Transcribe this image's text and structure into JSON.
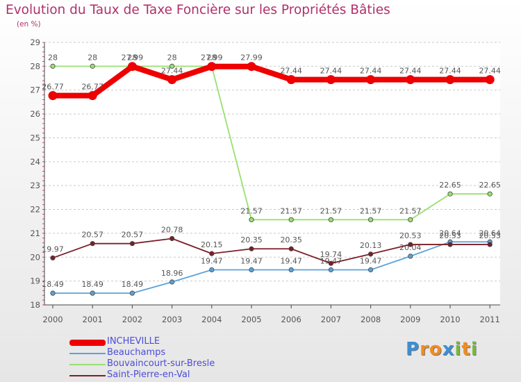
{
  "title": "Evolution du Taux de Taxe Foncière sur les Propriétés Bâties",
  "unit_label": "(en %)",
  "brand": {
    "letters": [
      "P",
      "r",
      "o",
      "x",
      "i",
      "t",
      "i"
    ],
    "colors": [
      "#3b8fd6",
      "#f28c1e",
      "#f28c1e",
      "#3b8fd6",
      "#7ab648",
      "#f28c1e",
      "#7ab648"
    ]
  },
  "chart_data": {
    "type": "line",
    "title": "Evolution du Taux de Taxe Foncière sur les Propriétés Bâties",
    "ylabel": "(en %)",
    "xlabel": "",
    "ylim": [
      18,
      29
    ],
    "yticks": [
      18,
      19,
      20,
      21,
      22,
      23,
      24,
      25,
      26,
      27,
      28,
      29
    ],
    "x": [
      "2000",
      "2001",
      "2002",
      "2003",
      "2004",
      "2005",
      "2006",
      "2007",
      "2008",
      "2009",
      "2010",
      "2011"
    ],
    "grid": "dashed-horizontal",
    "legend_position": "bottom-left",
    "series": [
      {
        "name": "Beauchamps",
        "color": "#5aa2d8",
        "values": [
          18.49,
          18.49,
          18.49,
          18.96,
          19.47,
          19.47,
          19.47,
          19.47,
          19.47,
          20.04,
          20.64,
          20.64
        ],
        "labels": [
          "18.49",
          "18.49",
          "18.49",
          "18.96",
          "19.47",
          "19.47",
          "19.47",
          "19.47",
          "19.47",
          "20.04",
          "20.64",
          "20.64"
        ]
      },
      {
        "name": "Bouvaincourt-sur-Bresle",
        "color": "#98e070",
        "values": [
          28,
          28,
          28,
          28,
          28,
          21.57,
          21.57,
          21.57,
          21.57,
          21.57,
          22.65,
          22.65
        ],
        "labels": [
          "28",
          "28",
          "28",
          "28",
          "28",
          "21.57",
          "21.57",
          "21.57",
          "21.57",
          "21.57",
          "22.65",
          "22.65"
        ]
      },
      {
        "name": "Saint-Pierre-en-Val",
        "color": "#7a1f28",
        "values": [
          19.97,
          20.57,
          20.57,
          20.78,
          20.15,
          20.35,
          20.35,
          19.74,
          20.13,
          20.53,
          20.53,
          20.53
        ],
        "labels": [
          "19.97",
          "20.57",
          "20.57",
          "20.78",
          "20.15",
          "20.35",
          "20.35",
          "19.74",
          "20.13",
          "20.53",
          "20.53",
          "20.53"
        ]
      },
      {
        "name": "INCHEVILLE",
        "color": "#ee0000",
        "values": [
          26.77,
          26.77,
          27.99,
          27.44,
          27.99,
          27.99,
          27.44,
          27.44,
          27.44,
          27.44,
          27.44,
          27.44
        ],
        "labels": [
          "26.77",
          "26.77",
          "27.99",
          "27.44",
          "27.99",
          "27.99",
          "27.44",
          "27.44",
          "27.44",
          "27.44",
          "27.44",
          "27.44"
        ]
      }
    ]
  },
  "legend": [
    {
      "name": "INCHEVILLE",
      "color": "#ee0000",
      "thickness": 9
    },
    {
      "name": "Beauchamps",
      "color": "#5aa2d8",
      "thickness": 2
    },
    {
      "name": "Bouvaincourt-sur-Bresle",
      "color": "#98e070",
      "thickness": 2
    },
    {
      "name": "Saint-Pierre-en-Val",
      "color": "#7a1f28",
      "thickness": 2
    }
  ]
}
